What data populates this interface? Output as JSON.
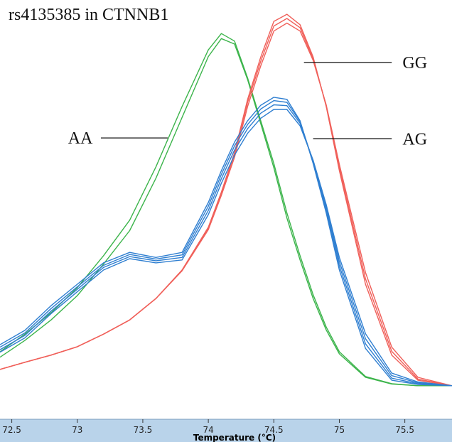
{
  "chart_data": {
    "type": "line",
    "title": "rs4135385 in CTNNB1",
    "xlabel": "Temperature (°C)",
    "x": [
      72.41,
      72.6,
      72.8,
      73.0,
      73.2,
      73.4,
      73.6,
      73.8,
      74.0,
      74.1,
      74.2,
      74.3,
      74.4,
      74.5,
      74.6,
      74.7,
      74.8,
      74.9,
      75.0,
      75.2,
      75.4,
      75.6,
      75.86
    ],
    "xlim": [
      72.41,
      75.86
    ],
    "ylim": [
      0,
      100
    ],
    "xticks": [
      72.5,
      73,
      73.5,
      74,
      74.5,
      75,
      75.5
    ],
    "series": [
      {
        "color": "#3cb44b",
        "values": [
          16.1,
          20.3,
          25.4,
          31.4,
          39.0,
          47.5,
          60.2,
          74.6,
          88.1,
          92.0,
          90.2,
          81.4,
          71.2,
          61.0,
          49.2,
          39.0,
          29.7,
          22.0,
          16.1,
          10.2,
          8.5,
          8.0,
          8.0
        ]
      },
      {
        "color": "#3cb44b",
        "values": [
          14.8,
          18.8,
          23.7,
          29.5,
          37.0,
          45.0,
          57.5,
          72.0,
          86.5,
          90.8,
          89.5,
          81.0,
          70.5,
          60.0,
          48.0,
          38.0,
          28.8,
          21.3,
          15.6,
          10.0,
          8.4,
          8.0,
          8.0
        ]
      },
      {
        "color": "#f0605a",
        "values": [
          11.9,
          13.6,
          15.3,
          17.3,
          20.3,
          23.7,
          28.8,
          35.6,
          45.8,
          54.2,
          63.6,
          76.3,
          86.4,
          94.9,
          96.6,
          94.1,
          86.4,
          74.6,
          59.3,
          32.2,
          15.3,
          9.3,
          8.0
        ]
      },
      {
        "color": "#f0605a",
        "values": [
          11.9,
          13.6,
          15.3,
          17.3,
          20.3,
          23.7,
          28.8,
          35.6,
          45.6,
          54.0,
          63.2,
          75.6,
          85.4,
          93.8,
          95.6,
          93.4,
          86.0,
          74.8,
          60.0,
          33.5,
          16.2,
          9.6,
          8.0
        ]
      },
      {
        "color": "#f0605a",
        "values": [
          11.9,
          13.6,
          15.3,
          17.3,
          20.3,
          23.7,
          28.8,
          35.4,
          45.2,
          53.4,
          62.5,
          74.6,
          84.3,
          92.6,
          94.5,
          92.6,
          85.6,
          75.0,
          60.8,
          35.0,
          17.2,
          10.0,
          8.0
        ]
      },
      {
        "color": "#2f7fd1",
        "values": [
          17.8,
          21.2,
          27.1,
          32.2,
          37.3,
          39.8,
          38.6,
          39.8,
          51.7,
          59.3,
          66.1,
          71.2,
          74.9,
          76.8,
          76.3,
          71.2,
          61.0,
          49.2,
          35.6,
          16.9,
          9.3,
          8.3,
          8.0
        ]
      },
      {
        "color": "#2f7fd1",
        "values": [
          17.2,
          20.6,
          26.4,
          31.6,
          36.7,
          39.3,
          38.2,
          39.2,
          50.8,
          58.4,
          65.2,
          70.3,
          74.0,
          76.0,
          75.6,
          71.0,
          61.4,
          50.0,
          36.6,
          18.0,
          9.8,
          8.5,
          8.0
        ]
      },
      {
        "color": "#2f7fd1",
        "values": [
          16.6,
          20.0,
          25.8,
          31.0,
          36.2,
          38.8,
          37.8,
          38.6,
          49.8,
          57.4,
          64.2,
          69.3,
          73.0,
          75.0,
          74.8,
          70.6,
          61.6,
          50.6,
          37.6,
          19.2,
          10.4,
          8.7,
          8.0
        ]
      },
      {
        "color": "#2f7fd1",
        "values": [
          16.0,
          19.4,
          25.2,
          30.4,
          35.6,
          38.3,
          37.3,
          38.0,
          48.8,
          56.3,
          63.0,
          68.2,
          71.8,
          73.9,
          73.9,
          70.0,
          61.8,
          51.2,
          38.6,
          20.4,
          11.0,
          8.9,
          8.0
        ]
      }
    ],
    "annotations": [
      {
        "text": "AA",
        "x": 73.15,
        "y": 67.1
      },
      {
        "text": "GG",
        "x": 75.45,
        "y": 85.1
      },
      {
        "text": "AG",
        "x": 75.45,
        "y": 66.9
      }
    ]
  }
}
